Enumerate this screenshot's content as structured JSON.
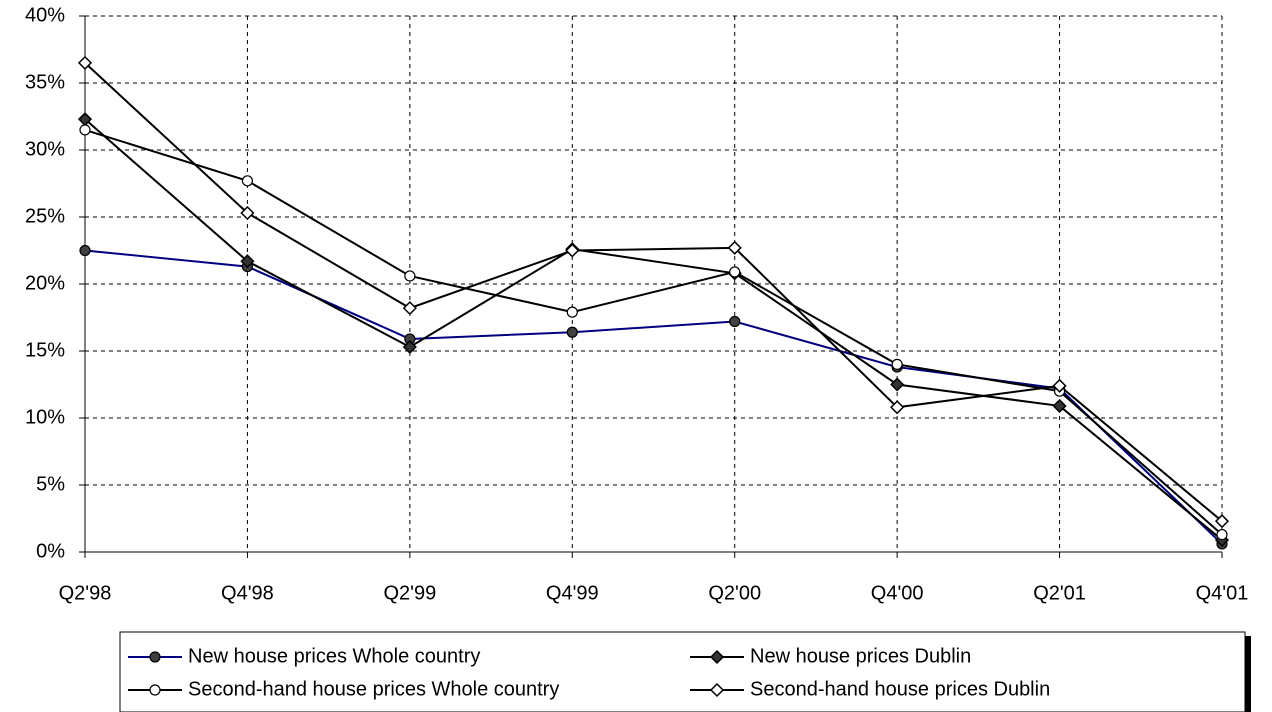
{
  "chart_data": {
    "type": "line",
    "categories": [
      "Q2'98",
      "Q4'98",
      "Q2'99",
      "Q4'99",
      "Q2'00",
      "Q4'00",
      "Q2'01",
      "Q4'01"
    ],
    "series": [
      {
        "name": "New house prices  Whole country",
        "color": "#000080",
        "marker": "circle",
        "marker_fill": "#404040",
        "values": [
          22.5,
          21.3,
          15.9,
          16.4,
          17.2,
          13.8,
          12.2,
          0.6
        ]
      },
      {
        "name": "New house prices  Dublin",
        "color": "#000000",
        "marker": "diamond",
        "marker_fill": "#333333",
        "values": [
          32.3,
          21.7,
          15.3,
          22.6,
          20.8,
          12.5,
          10.9,
          0.9
        ]
      },
      {
        "name": "Second-hand house prices  Whole country",
        "color": "#000000",
        "marker": "circle",
        "marker_fill": "#ffffff",
        "values": [
          31.5,
          27.7,
          20.6,
          17.9,
          20.9,
          14.0,
          12.0,
          1.3
        ]
      },
      {
        "name": "Second-hand house prices  Dublin",
        "color": "#000000",
        "marker": "diamond",
        "marker_fill": "#ffffff",
        "values": [
          36.5,
          25.3,
          18.2,
          22.5,
          22.7,
          10.8,
          12.4,
          2.3
        ]
      }
    ],
    "ylim": [
      0,
      40
    ],
    "yticks": [
      {
        "value": 0,
        "label": "0%"
      },
      {
        "value": 5,
        "label": "5%"
      },
      {
        "value": 10,
        "label": "10%"
      },
      {
        "value": 15,
        "label": "15%"
      },
      {
        "value": 20,
        "label": "20%"
      },
      {
        "value": 25,
        "label": "25%"
      },
      {
        "value": 30,
        "label": "30%"
      },
      {
        "value": 35,
        "label": "35%"
      },
      {
        "value": 40,
        "label": "40%"
      }
    ],
    "grid": true
  }
}
